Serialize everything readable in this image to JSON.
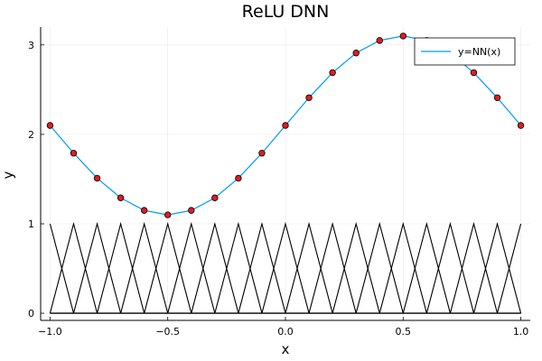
{
  "chart_data": {
    "type": "line",
    "title": "ReLU DNN",
    "xlabel": "x",
    "ylabel": "y",
    "xlim": [
      -1.04,
      1.04
    ],
    "ylim": [
      -0.08,
      3.2
    ],
    "xticks": [
      -1.0,
      -0.5,
      0.0,
      0.5,
      1.0
    ],
    "xtick_labels": [
      "−1.0",
      "−0.5",
      "0.0",
      "0.5",
      "1.0"
    ],
    "yticks": [
      0,
      1,
      2,
      3
    ],
    "ytick_labels": [
      "0",
      "1",
      "2",
      "3"
    ],
    "grid": true,
    "legend_position": "top-right",
    "series": [
      {
        "name": "y=NN(x)",
        "kind": "line",
        "color": "#009af9",
        "x": [
          -1.0,
          -0.9,
          -0.8,
          -0.7,
          -0.6,
          -0.5,
          -0.4,
          -0.3,
          -0.2,
          -0.1,
          0.0,
          0.1,
          0.2,
          0.3,
          0.4,
          0.5,
          0.6,
          0.7,
          0.8,
          0.9,
          1.0
        ],
        "y": [
          2.1,
          1.79,
          1.51,
          1.29,
          1.15,
          1.1,
          1.15,
          1.29,
          1.51,
          1.79,
          2.1,
          2.41,
          2.69,
          2.91,
          3.05,
          3.1,
          3.05,
          2.91,
          2.69,
          2.41,
          2.1
        ]
      },
      {
        "kind": "scatter",
        "color": "#e41a1c",
        "x": [
          -1.0,
          -0.9,
          -0.8,
          -0.7,
          -0.6,
          -0.5,
          -0.4,
          -0.3,
          -0.2,
          -0.1,
          0.0,
          0.1,
          0.2,
          0.3,
          0.4,
          0.5,
          0.6,
          0.7,
          0.8,
          0.9,
          1.0
        ],
        "y": [
          2.1,
          1.79,
          1.51,
          1.29,
          1.15,
          1.1,
          1.15,
          1.29,
          1.51,
          1.79,
          2.1,
          2.41,
          2.69,
          2.91,
          3.05,
          3.1,
          3.05,
          2.91,
          2.69,
          2.41,
          2.1
        ]
      },
      {
        "kind": "basis",
        "color": "#000000",
        "centers": [
          -1.0,
          -0.9,
          -0.8,
          -0.7,
          -0.6,
          -0.5,
          -0.4,
          -0.3,
          -0.2,
          -0.1,
          0.0,
          0.1,
          0.2,
          0.3,
          0.4,
          0.5,
          0.6,
          0.7,
          0.8,
          0.9,
          1.0
        ],
        "half_width": 0.1,
        "peak": 1
      }
    ]
  }
}
